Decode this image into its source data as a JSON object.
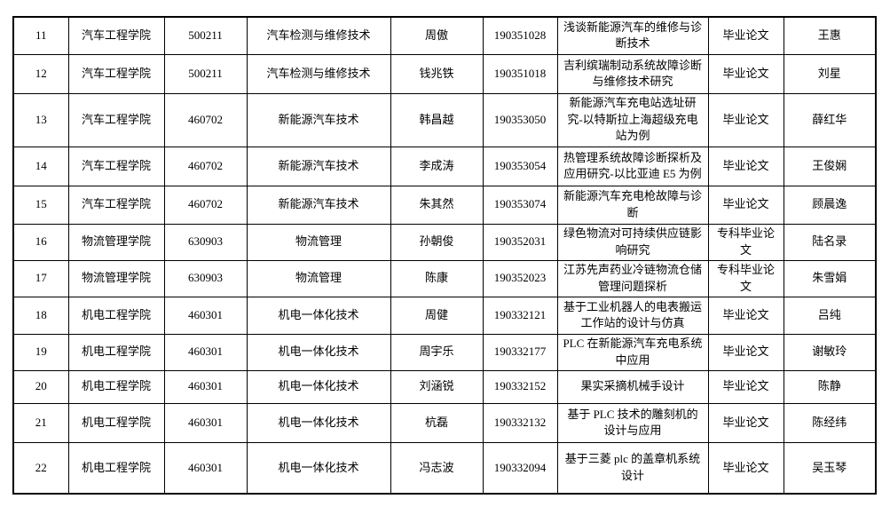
{
  "table": {
    "rows": [
      {
        "no": "11",
        "college": "汽车工程学院",
        "major_code": "500211",
        "major": "汽车检测与维修技术",
        "name": "周傲",
        "student_id": "190351028",
        "title": "浅谈新能源汽车的维修与诊断技术",
        "thesis_type": "毕业论文",
        "advisor": "王惠"
      },
      {
        "no": "12",
        "college": "汽车工程学院",
        "major_code": "500211",
        "major": "汽车检测与维修技术",
        "name": "钱兆铁",
        "student_id": "190351018",
        "title": "吉利缤瑞制动系统故障诊断与维修技术研究",
        "thesis_type": "毕业论文",
        "advisor": "刘星"
      },
      {
        "no": "13",
        "college": "汽车工程学院",
        "major_code": "460702",
        "major": "新能源汽车技术",
        "name": "韩昌越",
        "student_id": "190353050",
        "title": "新能源汽车充电站选址研究-以特斯拉上海超级充电站为例",
        "thesis_type": "毕业论文",
        "advisor": "薛红华"
      },
      {
        "no": "14",
        "college": "汽车工程学院",
        "major_code": "460702",
        "major": "新能源汽车技术",
        "name": "李成涛",
        "student_id": "190353054",
        "title": "热管理系统故障诊断探析及应用研究-以比亚迪 E5 为例",
        "thesis_type": "毕业论文",
        "advisor": "王俊娴"
      },
      {
        "no": "15",
        "college": "汽车工程学院",
        "major_code": "460702",
        "major": "新能源汽车技术",
        "name": "朱其然",
        "student_id": "190353074",
        "title": "新能源汽车充电枪故障与诊断",
        "thesis_type": "毕业论文",
        "advisor": "顾晨逸"
      },
      {
        "no": "16",
        "college": "物流管理学院",
        "major_code": "630903",
        "major": "物流管理",
        "name": "孙朝俊",
        "student_id": "190352031",
        "title": "绿色物流对可持续供应链影响研究",
        "thesis_type": "专科毕业论文",
        "advisor": "陆名录"
      },
      {
        "no": "17",
        "college": "物流管理学院",
        "major_code": "630903",
        "major": "物流管理",
        "name": "陈康",
        "student_id": "190352023",
        "title": "江苏先声药业冷链物流仓储管理问题探析",
        "thesis_type": "专科毕业论文",
        "advisor": "朱雪娟"
      },
      {
        "no": "18",
        "college": "机电工程学院",
        "major_code": "460301",
        "major": "机电一体化技术",
        "name": "周健",
        "student_id": "190332121",
        "title": "基于工业机器人的电表搬运工作站的设计与仿真",
        "thesis_type": "毕业论文",
        "advisor": "吕纯"
      },
      {
        "no": "19",
        "college": "机电工程学院",
        "major_code": "460301",
        "major": "机电一体化技术",
        "name": "周宇乐",
        "student_id": "190332177",
        "title": "PLC 在新能源汽车充电系统中应用",
        "thesis_type": "毕业论文",
        "advisor": "谢敏玲"
      },
      {
        "no": "20",
        "college": "机电工程学院",
        "major_code": "460301",
        "major": "机电一体化技术",
        "name": "刘涵锐",
        "student_id": "190332152",
        "title": "果实采摘机械手设计",
        "thesis_type": "毕业论文",
        "advisor": "陈静"
      },
      {
        "no": "21",
        "college": "机电工程学院",
        "major_code": "460301",
        "major": "机电一体化技术",
        "name": "杭磊",
        "student_id": "190332132",
        "title": "基于 PLC 技术的雕刻机的设计与应用",
        "thesis_type": "毕业论文",
        "advisor": "陈经纬"
      },
      {
        "no": "22",
        "college": "机电工程学院",
        "major_code": "460301",
        "major": "机电一体化技术",
        "name": "冯志波",
        "student_id": "190332094",
        "title": "基于三菱 plc 的盖章机系统设计",
        "thesis_type": "毕业论文",
        "advisor": "吴玉琴"
      }
    ]
  }
}
